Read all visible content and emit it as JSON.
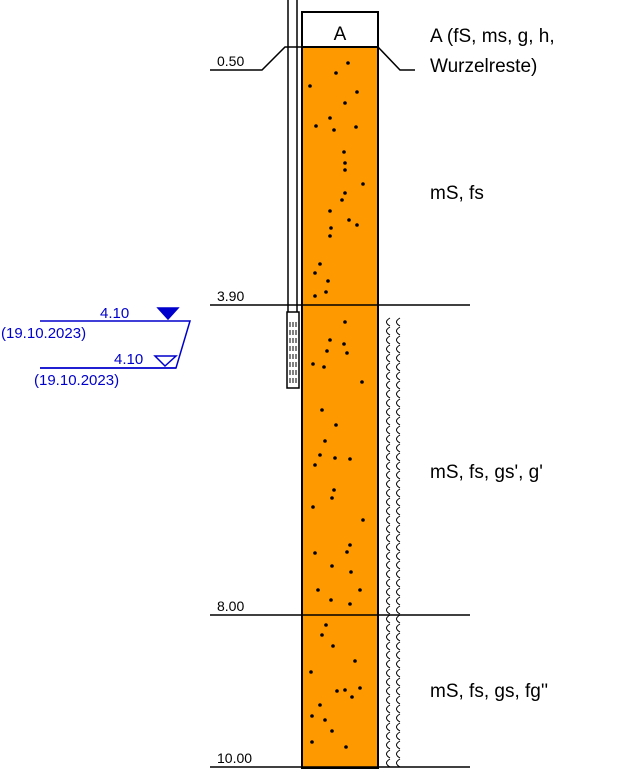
{
  "profile": {
    "layers": [
      {
        "top": 0.0,
        "bottom": 0.5,
        "code": "A",
        "description_lines": [
          "A (fS, ms, g, h,",
          "Wurzelreste)"
        ],
        "fill": "#ffffff",
        "pattern": "none"
      },
      {
        "top": 0.5,
        "bottom": 3.9,
        "description_lines": [
          "mS, fs"
        ],
        "fill": "#ff9900",
        "pattern": "dots"
      },
      {
        "top": 3.9,
        "bottom": 8.0,
        "description_lines": [
          "mS, fs, gs', g'"
        ],
        "fill": "#ff9900",
        "pattern": "dots",
        "side_symbol": "wet"
      },
      {
        "top": 8.0,
        "bottom": 10.0,
        "description_lines": [
          "mS, fs, gs, fg''"
        ],
        "fill": "#ff9900",
        "pattern": "dots",
        "side_symbol": "wet"
      }
    ],
    "depth_labels": [
      "0.50",
      "3.90",
      "8.00",
      "10.00"
    ],
    "water_levels": [
      {
        "depth": "4.10",
        "date": "(19.10.2023)",
        "symbol": "filled-triangle"
      },
      {
        "depth": "4.10",
        "date": "(19.10.2023)",
        "symbol": "open-triangle"
      }
    ],
    "colors": {
      "soil": "#ff9900",
      "water": "#0000cc",
      "line": "#000000"
    }
  }
}
